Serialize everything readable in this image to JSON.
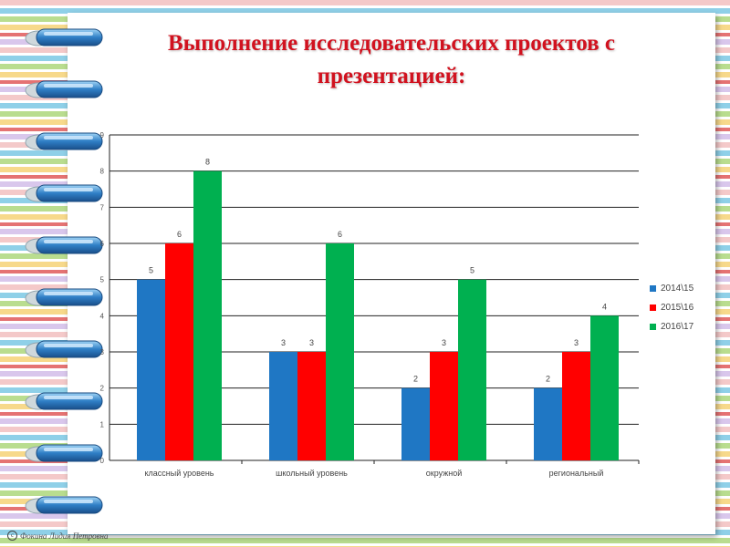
{
  "slide": {
    "title_line1": "Выполнение исследовательских проектов с",
    "title_line2": "презентацией:",
    "footer": "Фокина Лидия Петровна"
  },
  "chart_data": {
    "type": "bar",
    "categories": [
      "классный уровень",
      "школьный уровень",
      "окружной",
      "региональный"
    ],
    "series": [
      {
        "name": "2014\\15",
        "values": [
          5,
          3,
          2,
          2
        ],
        "color": "#1f77c4"
      },
      {
        "name": "2015\\16",
        "values": [
          6,
          3,
          3,
          3
        ],
        "color": "#ff0000"
      },
      {
        "name": "2016\\17",
        "values": [
          8,
          6,
          5,
          4
        ],
        "color": "#00b050"
      }
    ],
    "yticks": [
      0,
      1,
      2,
      3,
      4,
      5,
      6,
      7,
      8,
      9
    ],
    "ylim": [
      0,
      9
    ],
    "grid": true,
    "legend_position": "right"
  },
  "decor": {
    "ring_icon": "binder-ring-icon",
    "copyright_icon": "copyright-icon"
  }
}
